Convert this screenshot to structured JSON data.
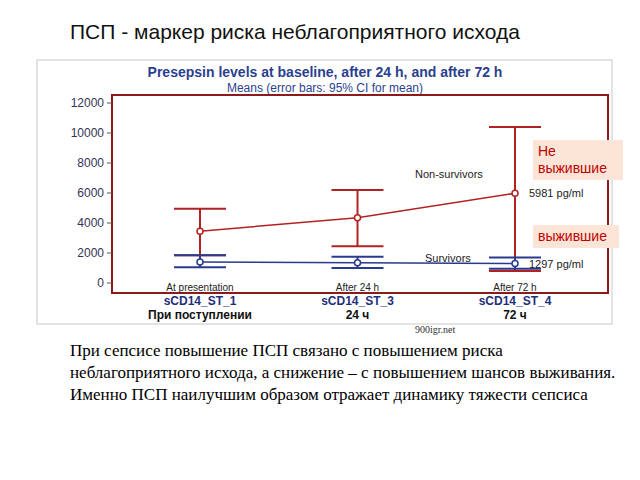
{
  "slide_title": "ПСП - маркер риска неблагоприятного исхода",
  "chart_data": {
    "type": "line",
    "title": "Presepsin levels at baseline, after 24 h, and after 72 h",
    "subtitle": "Means (error bars: 95% CI for mean)",
    "categories": [
      "sCD14_ST_1",
      "sCD14_ST_3",
      "sCD14_ST_4"
    ],
    "category_sublabels": [
      "При поступлении",
      "24 ч",
      "72 ч"
    ],
    "period_labels": [
      "At presentation",
      "After 24 h",
      "After 72 h"
    ],
    "ylim": [
      0,
      12000
    ],
    "yticks": [
      0,
      2000,
      4000,
      6000,
      8000,
      10000,
      12000
    ],
    "grid": false,
    "series": [
      {
        "name": "Non-survivors",
        "label_ru": "Не выжившие",
        "color": "#b22222",
        "marker": "circle",
        "values": [
          3450,
          4350,
          5981
        ],
        "ci_low": [
          1850,
          2450,
          800
        ],
        "ci_high": [
          4950,
          6200,
          10400
        ],
        "value_labels": [
          null,
          null,
          "5981 pg/ml"
        ]
      },
      {
        "name": "Survivors",
        "label_ru": "выжившие",
        "color": "#2a3a8c",
        "marker": "circle",
        "values": [
          1400,
          1350,
          1297
        ],
        "ci_low": [
          1050,
          1000,
          950
        ],
        "ci_high": [
          1850,
          1750,
          1700
        ],
        "value_labels": [
          null,
          null,
          "1297 pg/ml"
        ]
      }
    ],
    "watermark": "900igr.net"
  },
  "caption": "При сепсисе повышение ПСП  связано с повышением риска неблагоприятного исхода, а снижение – с повышением шансов выживания. Именно ПСП наилучшим образом отражает динамику тяжести сепсиса"
}
